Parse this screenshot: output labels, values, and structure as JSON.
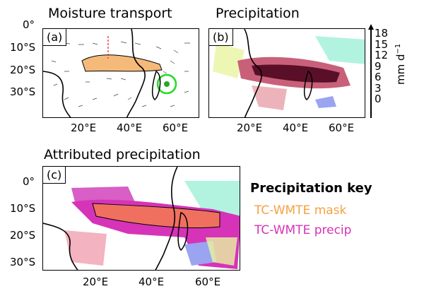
{
  "panels": [
    {
      "label": "(a)",
      "title": "Moisture transport"
    },
    {
      "label": "(b)",
      "title": "Precipitation"
    },
    {
      "label": "(c)",
      "title": "Attributed precipitation"
    }
  ],
  "lat_ticks": [
    "0°",
    "10°S",
    "20°S",
    "30°S"
  ],
  "lon_ticks": [
    "20°E",
    "40°E",
    "60°E"
  ],
  "colorbar": {
    "ticks": [
      "18",
      "15",
      "12",
      "9",
      "6",
      "3",
      "0"
    ],
    "unit": "mm d",
    "unit_exp": "−1",
    "range": [
      0,
      18
    ]
  },
  "key": {
    "title": "Precipitation key",
    "items": [
      {
        "label": "TC-WMTE mask",
        "color": "#f5a142"
      },
      {
        "label": "TC-WMTE precip",
        "color": "#d633b8"
      }
    ]
  }
}
